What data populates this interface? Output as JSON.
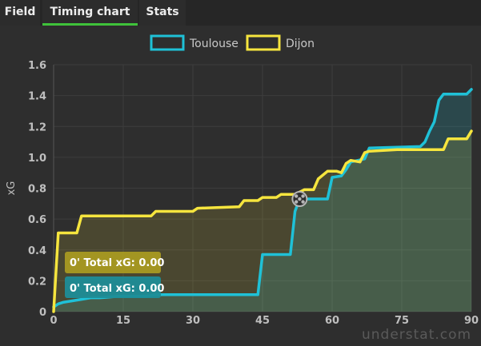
{
  "tabs": [
    {
      "label": "Field",
      "active": false
    },
    {
      "label": "Timing chart",
      "active": true
    },
    {
      "label": "Stats",
      "active": false
    }
  ],
  "watermark": "understat.com",
  "icons": {
    "ball": "soccer-ball-icon"
  },
  "colors": {
    "toulouse": "#1fc1d7",
    "dijon": "#f6e53e",
    "background": "#2e2e2e",
    "accent": "#3fc23a"
  },
  "tooltip": {
    "dijon": "0' Total xG: 0.00",
    "toulouse": "0' Total xG: 0.00"
  },
  "chart_data": {
    "type": "line",
    "title": "",
    "xlabel": "",
    "ylabel": "xG",
    "xlim": [
      0,
      90
    ],
    "ylim": [
      0,
      1.6
    ],
    "xticks": [
      "0",
      "15",
      "30",
      "45",
      "60",
      "75",
      "90"
    ],
    "yticks": [
      "0",
      "0.2",
      "0.4",
      "0.6",
      "0.8",
      "1.0",
      "1.2",
      "1.4",
      "1.6"
    ],
    "legend_position": "top-center",
    "grid": true,
    "goal_minute": 53,
    "series": [
      {
        "name": "Toulouse",
        "color": "#1fc1d7",
        "points": [
          [
            0,
            0.03
          ],
          [
            1,
            0.05
          ],
          [
            2,
            0.06
          ],
          [
            4,
            0.07
          ],
          [
            6,
            0.08
          ],
          [
            8,
            0.09
          ],
          [
            10,
            0.09
          ],
          [
            14,
            0.1
          ],
          [
            20,
            0.1
          ],
          [
            22,
            0.11
          ],
          [
            44,
            0.11
          ],
          [
            45,
            0.37
          ],
          [
            51,
            0.37
          ],
          [
            52,
            0.65
          ],
          [
            53,
            0.73
          ],
          [
            59,
            0.73
          ],
          [
            60,
            0.87
          ],
          [
            62,
            0.88
          ],
          [
            63,
            0.92
          ],
          [
            64,
            0.97
          ],
          [
            67,
            0.99
          ],
          [
            68,
            1.06
          ],
          [
            79,
            1.07
          ],
          [
            80,
            1.1
          ],
          [
            81,
            1.17
          ],
          [
            82,
            1.23
          ],
          [
            83,
            1.37
          ],
          [
            84,
            1.41
          ],
          [
            89,
            1.41
          ],
          [
            90,
            1.44
          ]
        ]
      },
      {
        "name": "Dijon",
        "color": "#f6e53e",
        "points": [
          [
            0,
            0.0
          ],
          [
            1,
            0.51
          ],
          [
            3,
            0.51
          ],
          [
            5,
            0.51
          ],
          [
            6,
            0.62
          ],
          [
            21,
            0.62
          ],
          [
            22,
            0.65
          ],
          [
            30,
            0.65
          ],
          [
            31,
            0.67
          ],
          [
            40,
            0.68
          ],
          [
            41,
            0.72
          ],
          [
            44,
            0.72
          ],
          [
            45,
            0.74
          ],
          [
            48,
            0.74
          ],
          [
            49,
            0.76
          ],
          [
            52,
            0.76
          ],
          [
            54,
            0.79
          ],
          [
            56,
            0.79
          ],
          [
            57,
            0.86
          ],
          [
            59,
            0.91
          ],
          [
            61,
            0.91
          ],
          [
            62,
            0.9
          ],
          [
            63,
            0.96
          ],
          [
            64,
            0.98
          ],
          [
            66,
            0.97
          ],
          [
            67,
            1.03
          ],
          [
            68,
            1.04
          ],
          [
            74,
            1.05
          ],
          [
            84,
            1.05
          ],
          [
            85,
            1.12
          ],
          [
            89,
            1.12
          ],
          [
            90,
            1.17
          ]
        ]
      }
    ]
  }
}
